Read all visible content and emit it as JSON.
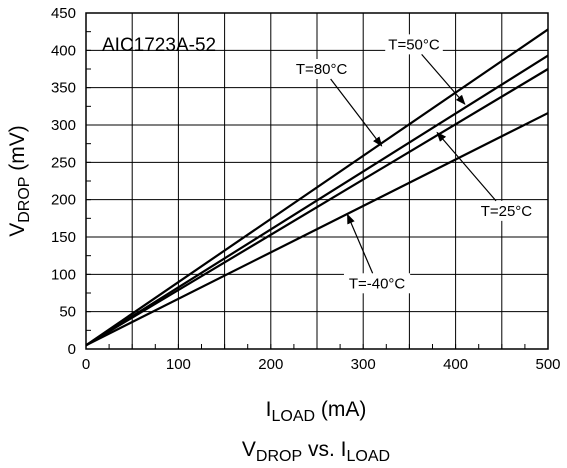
{
  "chart_data": {
    "type": "line",
    "title": "AIC1723A-52",
    "caption": {
      "main_v": "V",
      "sub_drop": "DROP",
      "vs": " vs. I",
      "sub_load": "LOAD"
    },
    "xlabel": {
      "main": "I",
      "sub": "LOAD",
      "unit": " (mA)"
    },
    "ylabel": {
      "main": "V",
      "sub": "DROP",
      "unit": " (mV)"
    },
    "xlim": [
      0,
      500
    ],
    "ylim": [
      0,
      450
    ],
    "xticks": [
      "0",
      "100",
      "200",
      "300",
      "400",
      "500"
    ],
    "yticks": [
      "0",
      "50",
      "100",
      "150",
      "200",
      "250",
      "300",
      "350",
      "400",
      "450"
    ],
    "grid": true,
    "series": [
      {
        "name": "T=80°C",
        "x": [
          0,
          500
        ],
        "y": [
          5,
          428
        ]
      },
      {
        "name": "T=50°C",
        "x": [
          0,
          500
        ],
        "y": [
          5,
          393
        ]
      },
      {
        "name": "T=25°C",
        "x": [
          0,
          500
        ],
        "y": [
          5,
          375
        ]
      },
      {
        "name": "T=-40°C",
        "x": [
          0,
          500
        ],
        "y": [
          5,
          316
        ]
      }
    ],
    "annotations": [
      {
        "label": "T=80°C",
        "text_x": 255,
        "text_y": 375,
        "arrow_to_x": 320,
        "arrow_to_y": 272
      },
      {
        "label": "T=50°C",
        "text_x": 355,
        "text_y": 408,
        "arrow_to_x": 410,
        "arrow_to_y": 328
      },
      {
        "label": "T=25°C",
        "text_x": 455,
        "text_y": 185,
        "arrow_to_x": 380,
        "arrow_to_y": 290
      },
      {
        "label": "T=-40°C",
        "text_x": 315,
        "text_y": 88,
        "arrow_to_x": 283,
        "arrow_to_y": 180
      }
    ],
    "colors": {
      "line": "#000000",
      "grid": "#000000",
      "background": "#ffffff"
    }
  }
}
